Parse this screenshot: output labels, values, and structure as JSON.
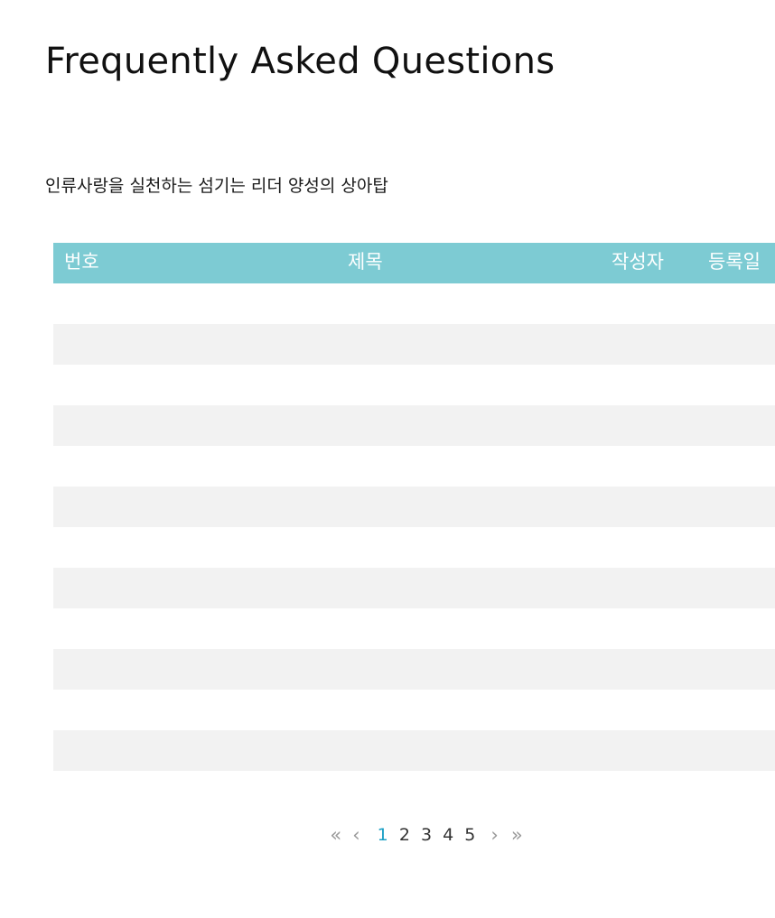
{
  "page": {
    "title": "Frequently Asked Questions",
    "subtitle": "인류사랑을 실천하는 섬기는 리더 양성의 상아탑"
  },
  "board": {
    "columns": {
      "number": "번호",
      "title": "제목",
      "author": "작성자",
      "date": "등록일"
    },
    "rows": []
  },
  "pagination": {
    "first_icon": "«",
    "prev_icon": "‹",
    "next_icon": "›",
    "last_icon": "»",
    "pages": [
      "1",
      "2",
      "3",
      "4",
      "5"
    ],
    "current_page": "1"
  },
  "colors": {
    "header_bg": "#7dcbd3",
    "row_alt_bg": "#f2f2f2",
    "active_page": "#1a9fc4"
  }
}
